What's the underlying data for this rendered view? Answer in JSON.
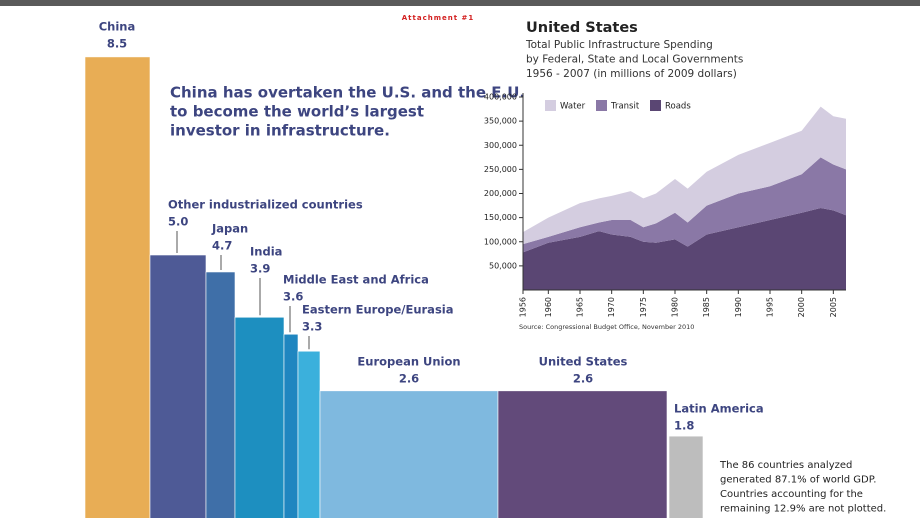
{
  "header": {
    "attachment": "Attachment #1"
  },
  "chart_data": [
    {
      "type": "marimekko",
      "categories": [
        "China",
        "Other industrialized countries",
        "Japan",
        "India",
        "Middle East and Africa",
        "Eastern Europe/Eurasia",
        "European Union",
        "United States",
        "Latin America"
      ],
      "values": [
        8.5,
        5.0,
        4.7,
        3.9,
        3.6,
        3.3,
        2.6,
        2.6,
        1.8
      ],
      "value_labels": [
        "8.5",
        "5.0",
        "4.7",
        "3.9",
        "3.6",
        "3.3",
        "2.6",
        "2.6",
        "1.8"
      ],
      "colors": [
        "#e8ad55",
        "#4e5a96",
        "#3f6fa8",
        "#1d8fc0",
        "#1f86c0",
        "#3bb0dc",
        "#7fb9df",
        "#624a7a",
        "#bdbdbd"
      ],
      "headline": [
        "China has overtaken the U.S. and the E.U.",
        "to become the world’s largest",
        "investor in infrastructure."
      ],
      "footnote": [
        "The 86 countries analyzed",
        "generated 87.1% of world GDP.",
        "Countries accounting for the",
        "remaining 12.9% are not plotted."
      ]
    },
    {
      "type": "area",
      "title": "United States",
      "subtitle": [
        "Total Public Infrastructure Spending",
        "by Federal, State and Local Governments",
        "1956 - 2007 (in millions of 2009 dollars)"
      ],
      "source": "Source: Congressional Budget Office, November 2010",
      "x": [
        1956,
        1960,
        1965,
        1968,
        1970,
        1973,
        1975,
        1977,
        1980,
        1982,
        1985,
        1990,
        1995,
        2000,
        2003,
        2005,
        2007
      ],
      "series": [
        {
          "name": "Roads",
          "color": "#5a4673",
          "values": [
            78000,
            98000,
            110000,
            122000,
            115000,
            110000,
            100000,
            98000,
            105000,
            90000,
            115000,
            130000,
            145000,
            160000,
            170000,
            165000,
            155000
          ]
        },
        {
          "name": "Transit",
          "color": "#8a78a6",
          "values": [
            17000,
            12000,
            20000,
            18000,
            30000,
            35000,
            30000,
            40000,
            55000,
            50000,
            60000,
            70000,
            70000,
            80000,
            105000,
            95000,
            95000
          ]
        },
        {
          "name": "Water",
          "color": "#d4cde0",
          "values": [
            25000,
            40000,
            50000,
            50000,
            50000,
            60000,
            60000,
            62000,
            70000,
            70000,
            70000,
            80000,
            90000,
            90000,
            105000,
            100000,
            105000
          ]
        }
      ],
      "xlim": [
        1956,
        2007
      ],
      "xticks": [
        1956,
        1960,
        1965,
        1970,
        1975,
        1980,
        1985,
        1990,
        1995,
        2000,
        2005
      ],
      "ylim": [
        0,
        400000
      ],
      "yticks": [
        {
          "value": 50000,
          "label": "50,000"
        },
        {
          "value": 100000,
          "label": "100,000"
        },
        {
          "value": 150000,
          "label": "150,000"
        },
        {
          "value": 200000,
          "label": "200,000"
        },
        {
          "value": 250000,
          "label": "250,000"
        },
        {
          "value": 300000,
          "label": "300,000"
        },
        {
          "value": 350000,
          "label": "350,000"
        },
        {
          "value": 400000,
          "label": "400,000"
        }
      ]
    }
  ]
}
